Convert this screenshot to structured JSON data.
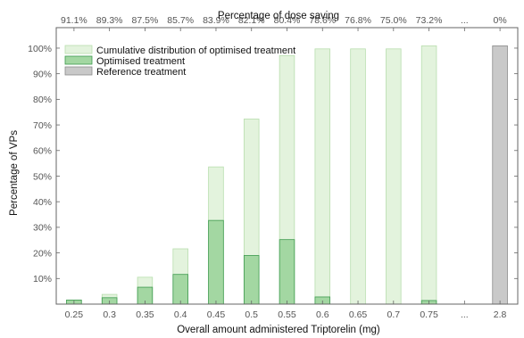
{
  "chart_data": {
    "type": "bar",
    "title": "",
    "xlabel": "Overall amount administered Triptorelin (mg)",
    "ylabel": "Percentage of VPs",
    "x2label": "Percentage of dose saving",
    "categories": [
      "0.25",
      "0.3",
      "0.35",
      "0.4",
      "0.45",
      "0.5",
      "0.55",
      "0.6",
      "0.65",
      "0.7",
      "0.75",
      "...",
      "2.8"
    ],
    "top_tick_labels": [
      "91.1%",
      "89.3%",
      "87.5%",
      "85.7%",
      "83.9%",
      "82.1%",
      "80.4%",
      "78.6%",
      "76.8%",
      "75.0%",
      "73.2%",
      "...",
      "0%"
    ],
    "y_tick_labels": [
      "10%",
      "20%",
      "30%",
      "40%",
      "50%",
      "60%",
      "70%",
      "80%",
      "90%",
      "100%"
    ],
    "ylim": [
      0,
      108
    ],
    "grid": false,
    "legend_position": "top-left",
    "series": [
      {
        "name": "Cumulative distribution of optimised treatment",
        "color": "#e3f3dd",
        "edge": "#b8deae",
        "values": [
          1.6,
          3.8,
          10.5,
          21.6,
          53.6,
          72.3,
          97.1,
          99.7,
          99.7,
          99.7,
          100.9,
          null,
          null
        ]
      },
      {
        "name": "Optimised treatment",
        "color": "#a3d7a2",
        "edge": "#3d9a4e",
        "values": [
          1.6,
          2.5,
          6.6,
          11.6,
          32.7,
          19.0,
          25.2,
          2.8,
          0,
          0,
          1.4,
          null,
          null
        ]
      },
      {
        "name": "Reference treatment",
        "color": "#c9c9c9",
        "edge": "#8a8a8a",
        "values": [
          null,
          null,
          null,
          null,
          null,
          null,
          null,
          null,
          null,
          null,
          null,
          null,
          100.9
        ]
      }
    ]
  }
}
